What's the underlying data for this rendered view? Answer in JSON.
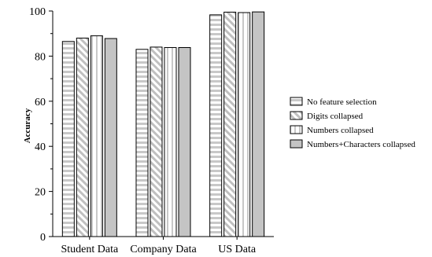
{
  "chart_data": {
    "type": "bar",
    "categories": [
      "Student Data",
      "Company Data",
      "US Data"
    ],
    "ylabel": "Accuracy",
    "xlabel": "",
    "ylim": [
      0,
      100
    ],
    "yticks": [
      0,
      20,
      40,
      60,
      80,
      100
    ],
    "grid": false,
    "legend_position": "right",
    "series": [
      {
        "name": "No feature selection",
        "values": [
          86.5,
          83.0,
          98.3
        ],
        "pattern": "horizontal-stripes"
      },
      {
        "name": "Digits collapsed",
        "values": [
          88.0,
          84.0,
          99.5
        ],
        "pattern": "diagonal-hatch"
      },
      {
        "name": "Numbers collapsed",
        "values": [
          89.0,
          83.8,
          99.3
        ],
        "pattern": "vertical-stripes"
      },
      {
        "name": "Numbers+Characters collapsed",
        "values": [
          87.8,
          83.8,
          99.6
        ],
        "pattern": "solid-gray"
      }
    ]
  }
}
